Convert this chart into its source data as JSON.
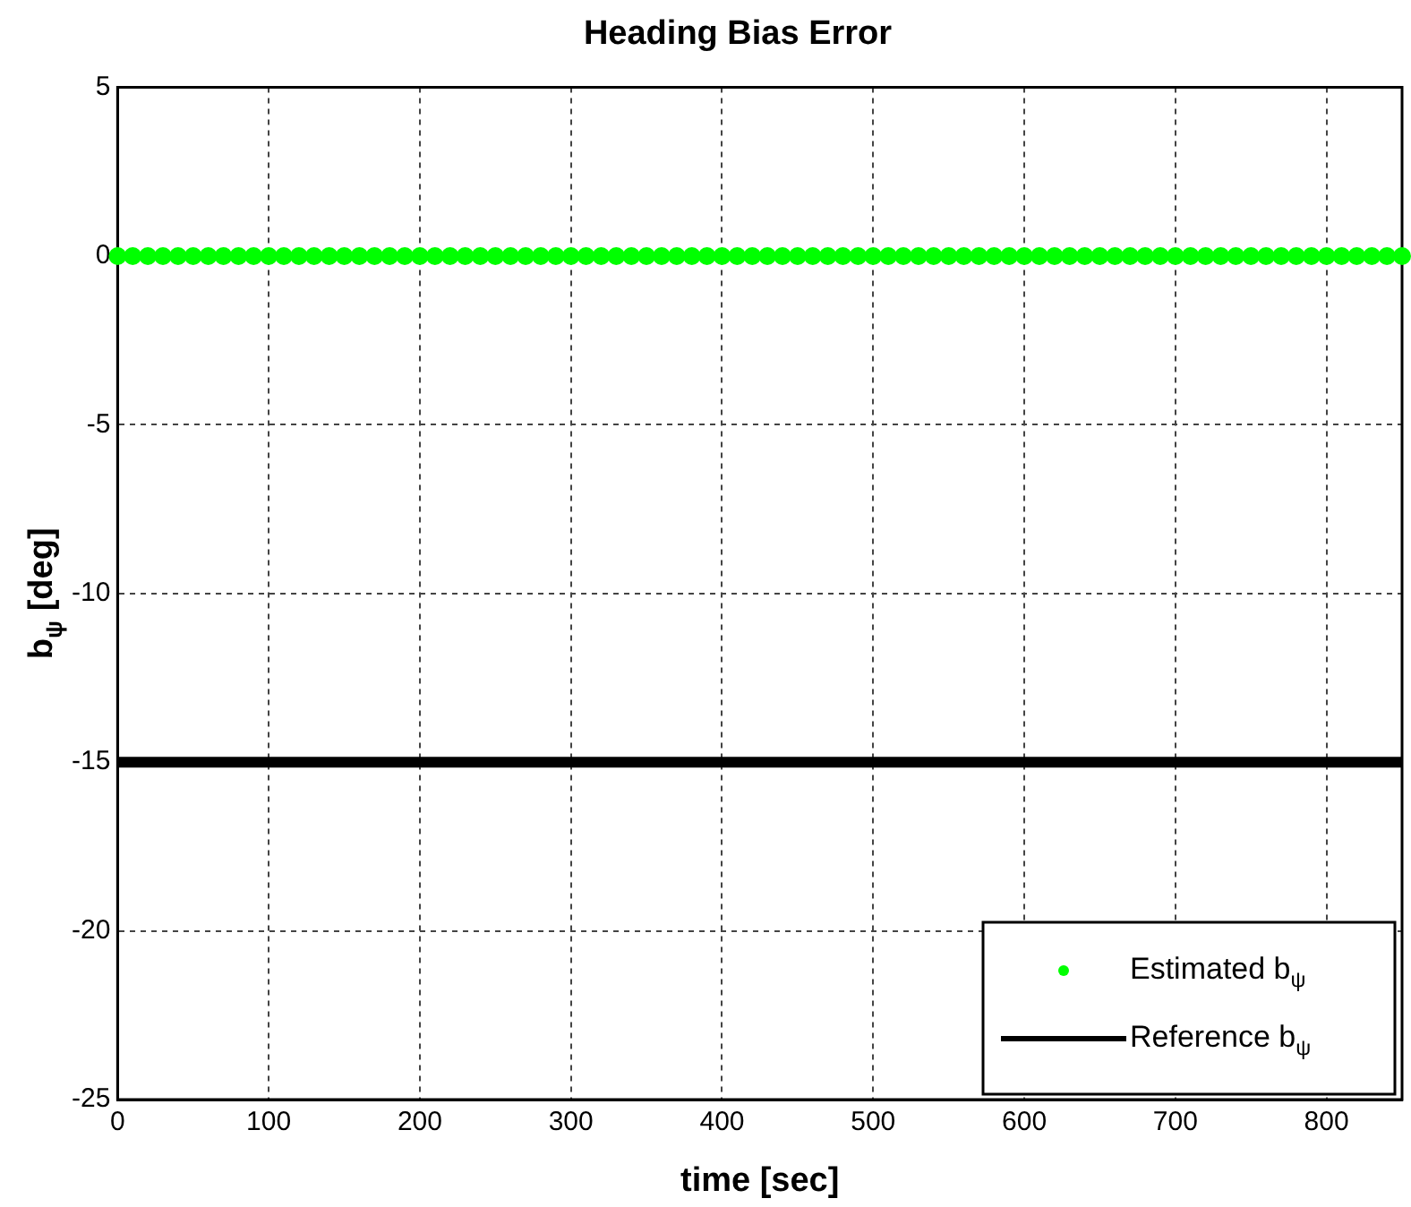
{
  "chart_data": {
    "type": "scatter",
    "title": "Heading Bias Error",
    "xlabel": "time [sec]",
    "ylabel": "b$_{ψ}$ [deg]",
    "xlim": [
      0,
      850
    ],
    "xticks": [
      0,
      100,
      200,
      300,
      400,
      500,
      600,
      700,
      800
    ],
    "ylim": [
      -25,
      5
    ],
    "yticks": [
      -25,
      -20,
      -15,
      -10,
      -5,
      0,
      5
    ],
    "grid": true,
    "legend": "bottom right",
    "series": [
      {
        "name": "Estimated b$_{ψ}$",
        "type": "scatter",
        "marker": "circle",
        "color": "#00ff00",
        "x": [
          0,
          10,
          20,
          30,
          40,
          50,
          60,
          70,
          80,
          90,
          100,
          110,
          120,
          130,
          140,
          150,
          160,
          170,
          180,
          190,
          200,
          210,
          220,
          230,
          240,
          250,
          260,
          270,
          280,
          290,
          300,
          310,
          320,
          330,
          340,
          350,
          360,
          370,
          380,
          390,
          400,
          410,
          420,
          430,
          440,
          450,
          460,
          470,
          480,
          490,
          500,
          510,
          520,
          530,
          540,
          550,
          560,
          570,
          580,
          590,
          600,
          610,
          620,
          630,
          640,
          650,
          660,
          670,
          680,
          690,
          700,
          710,
          720,
          730,
          740,
          750,
          760,
          770,
          780,
          790,
          800,
          810,
          820,
          830,
          840,
          850
        ],
        "values": [
          0,
          0,
          0,
          0,
          0,
          0,
          0,
          0,
          0,
          0,
          0,
          0,
          0,
          0,
          0,
          0,
          0,
          0,
          0,
          0,
          0,
          0,
          0,
          0,
          0,
          0,
          0,
          0,
          0,
          0,
          0,
          0,
          0,
          0,
          0,
          0,
          0,
          0,
          0,
          0,
          0,
          0,
          0,
          0,
          0,
          0,
          0,
          0,
          0,
          0,
          0,
          0,
          0,
          0,
          0,
          0,
          0,
          0,
          0,
          0,
          0,
          0,
          0,
          0,
          0,
          0,
          0,
          0,
          0,
          0,
          0,
          0,
          0,
          0,
          0,
          0,
          0,
          0,
          0,
          0,
          0,
          0,
          0,
          0,
          0,
          0
        ]
      },
      {
        "name": "Reference b$_{ψ}$",
        "type": "line",
        "marker": "none",
        "line_style": "solid",
        "color": "#000000",
        "x": [
          0,
          850
        ],
        "values": [
          -15,
          -15
        ]
      }
    ]
  }
}
